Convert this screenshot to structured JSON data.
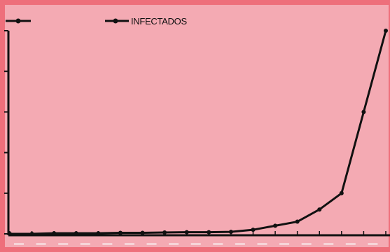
{
  "chart_data": {
    "type": "line",
    "title": "",
    "xlabel": "",
    "ylabel": "",
    "grid": false,
    "legend_position": "top",
    "ylim": [
      0,
      1
    ],
    "series": [
      {
        "name": "",
        "color": "#111111",
        "values": []
      },
      {
        "name": "INFECTADOS",
        "color": "#111111",
        "values": [
          0,
          0,
          0.003,
          0.003,
          0.003,
          0.005,
          0.005,
          0.007,
          0.008,
          0.008,
          0.01,
          0.02,
          0.04,
          0.06,
          0.12,
          0.2,
          0.6,
          1.0
        ]
      }
    ]
  },
  "colors": {
    "background": "#f4aab3",
    "frame": "#ee6f7b",
    "line": "#111111"
  }
}
